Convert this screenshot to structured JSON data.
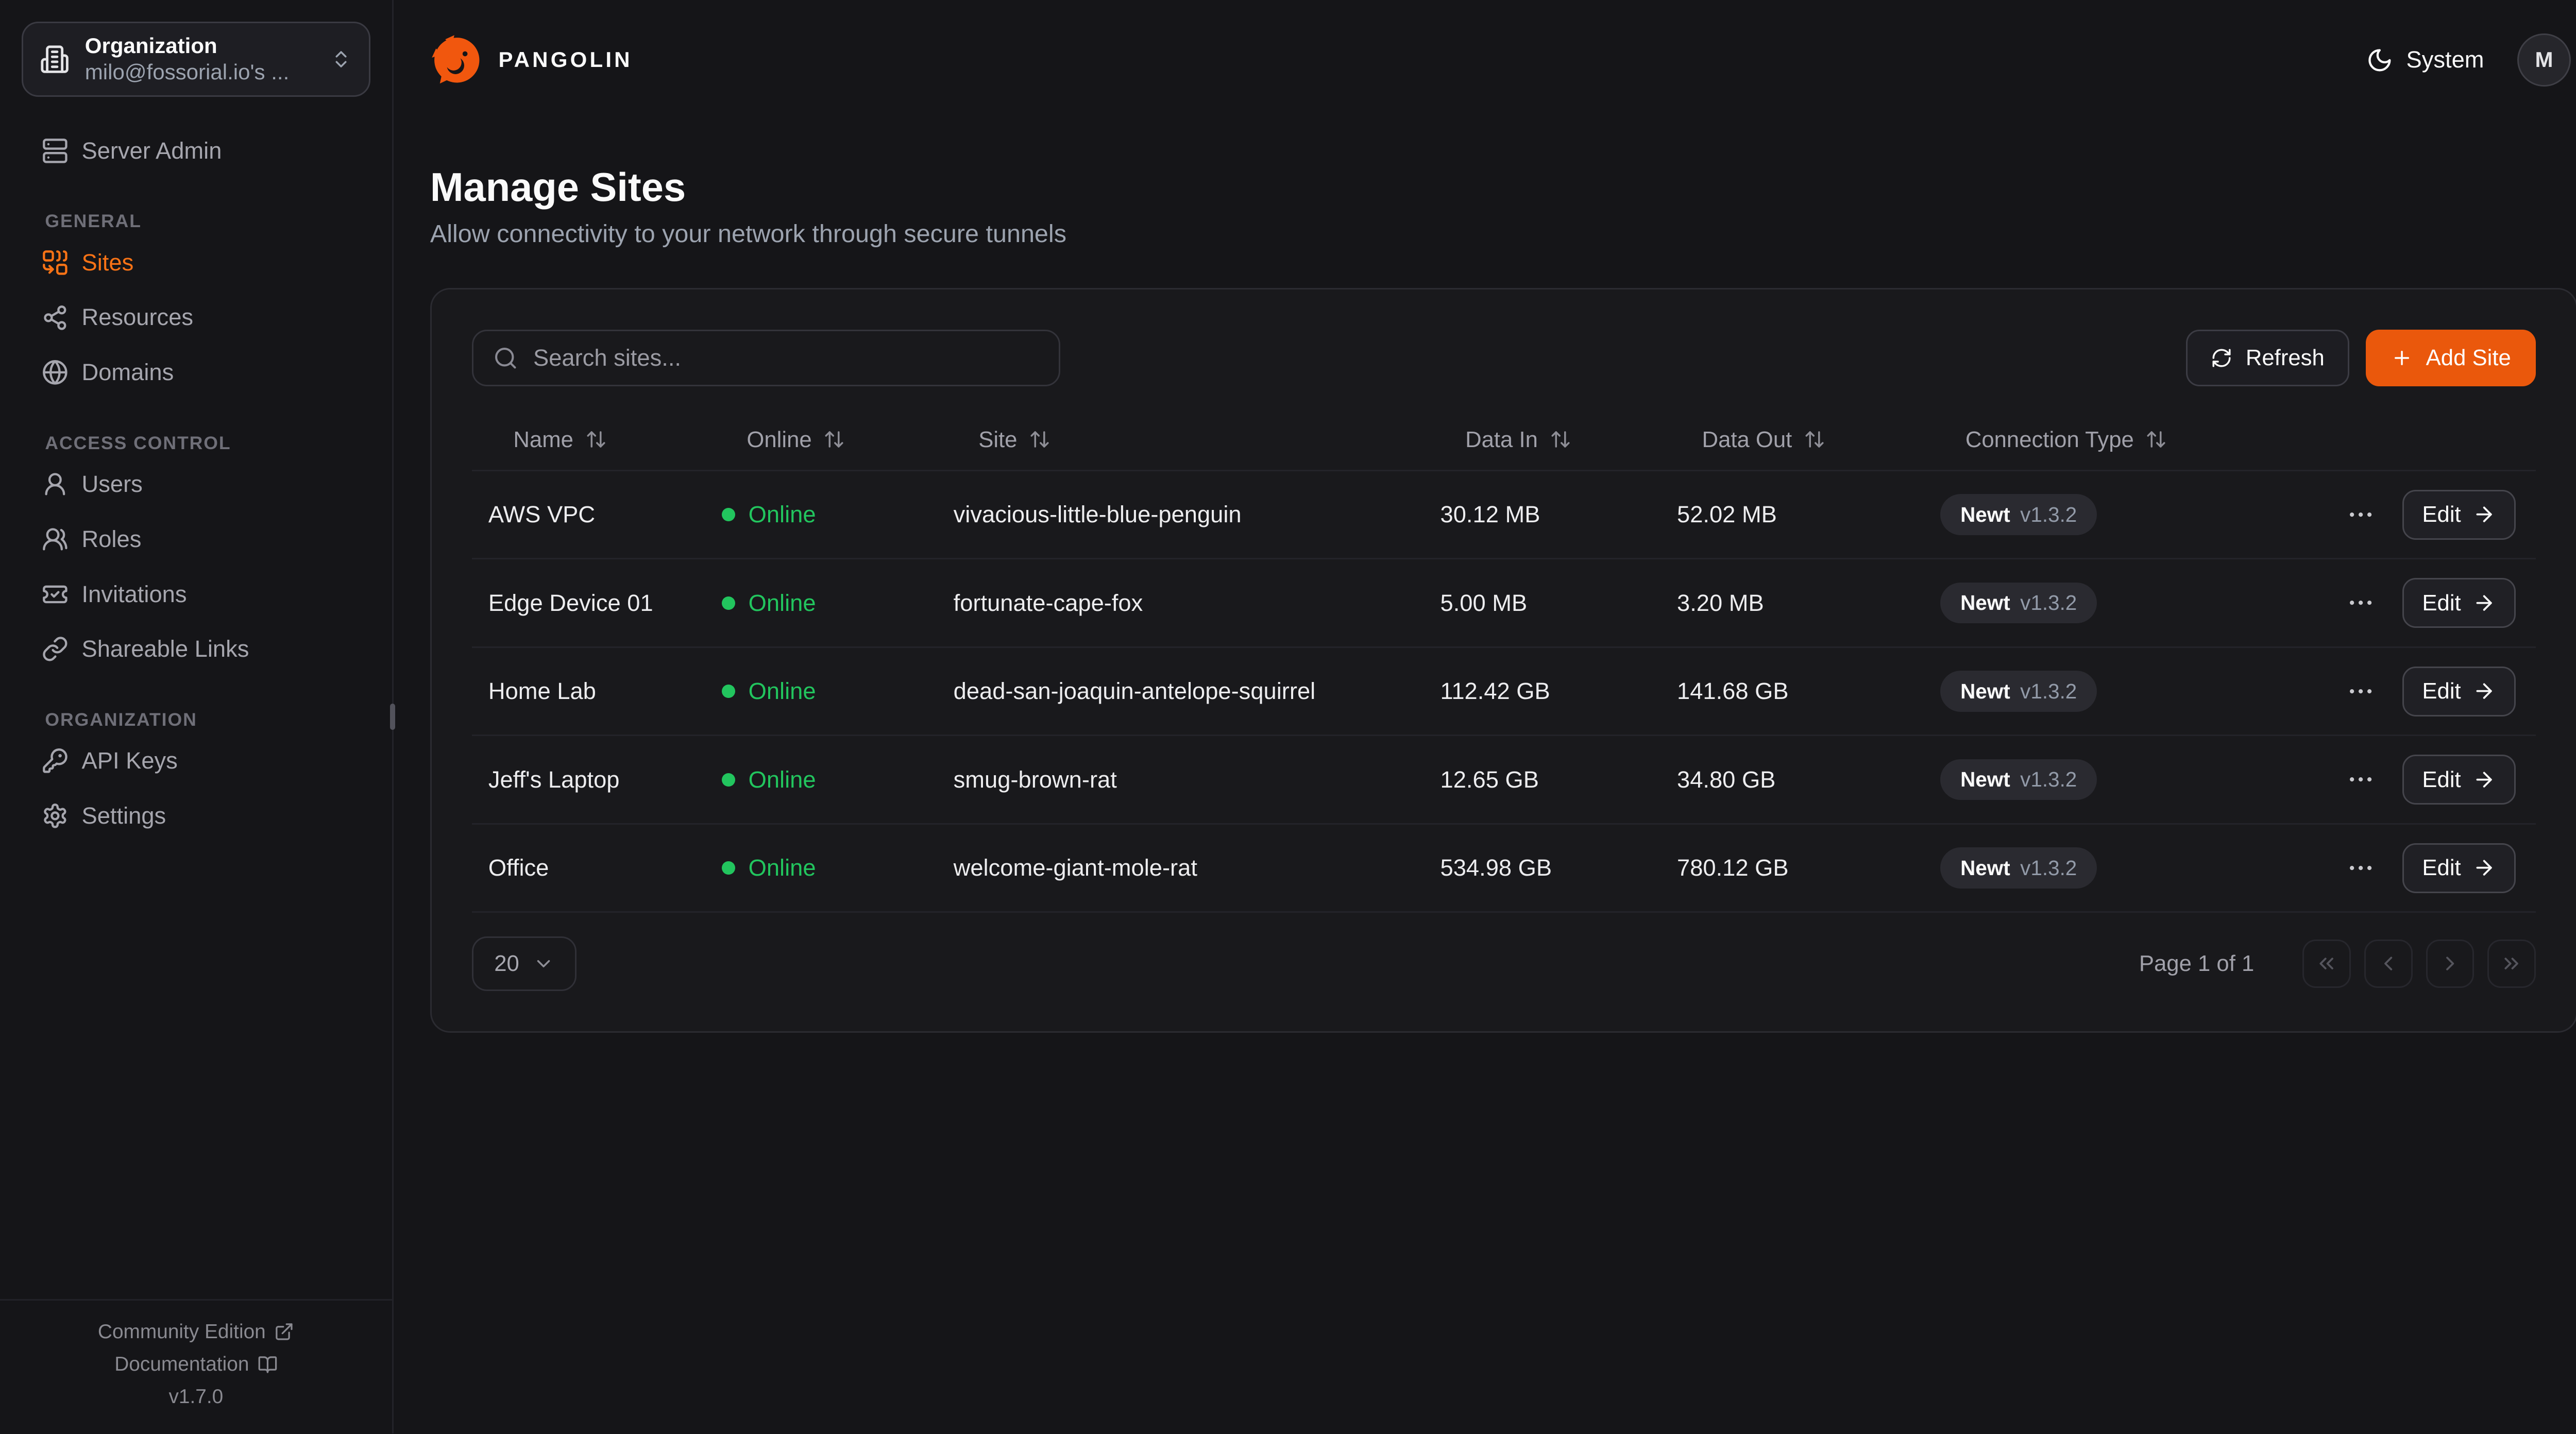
{
  "brand": {
    "name": "PANGOLIN",
    "logo_color": "#f1570e"
  },
  "org_switcher": {
    "label": "Organization",
    "value": "milo@fossorial.io's ...",
    "icon": "building"
  },
  "sidebar": {
    "items_top": [
      {
        "label": "Server Admin",
        "icon": "server",
        "active": false
      }
    ],
    "sections": [
      {
        "title": "GENERAL",
        "items": [
          {
            "label": "Sites",
            "icon": "combine",
            "active": true
          },
          {
            "label": "Resources",
            "icon": "share-2",
            "active": false
          },
          {
            "label": "Domains",
            "icon": "globe",
            "active": false
          }
        ]
      },
      {
        "title": "ACCESS CONTROL",
        "items": [
          {
            "label": "Users",
            "icon": "user-round",
            "active": false
          },
          {
            "label": "Roles",
            "icon": "users-round",
            "active": false
          },
          {
            "label": "Invitations",
            "icon": "ticket-check",
            "active": false
          },
          {
            "label": "Shareable Links",
            "icon": "link",
            "active": false
          }
        ]
      },
      {
        "title": "ORGANIZATION",
        "items": [
          {
            "label": "API Keys",
            "icon": "key-round",
            "active": false
          },
          {
            "label": "Settings",
            "icon": "settings",
            "active": false
          }
        ]
      }
    ],
    "footer": {
      "links": [
        {
          "label": "Community Edition",
          "icon": "external-link"
        },
        {
          "label": "Documentation",
          "icon": "book-open"
        }
      ],
      "version": "v1.7.0"
    }
  },
  "header": {
    "theme_label": "System",
    "theme_icon": "moon",
    "avatar_initial": "M"
  },
  "page": {
    "title": "Manage Sites",
    "subtitle": "Allow connectivity to your network through secure tunnels"
  },
  "toolbar": {
    "search_placeholder": "Search sites...",
    "refresh_label": "Refresh",
    "add_site_label": "Add Site"
  },
  "table": {
    "edit_label": "Edit",
    "columns": [
      {
        "label": "Name",
        "sortable": true
      },
      {
        "label": "Online",
        "sortable": true
      },
      {
        "label": "Site",
        "sortable": true
      },
      {
        "label": "Data In",
        "sortable": true
      },
      {
        "label": "Data Out",
        "sortable": true
      },
      {
        "label": "Connection Type",
        "sortable": true
      },
      {
        "label": "",
        "sortable": false
      }
    ],
    "rows": [
      {
        "name": "AWS VPC",
        "status": "Online",
        "site": "vivacious-little-blue-penguin",
        "data_in": "30.12 MB",
        "data_out": "52.02 MB",
        "connection": {
          "type": "Newt",
          "version": "v1.3.2"
        }
      },
      {
        "name": "Edge Device 01",
        "status": "Online",
        "site": "fortunate-cape-fox",
        "data_in": "5.00 MB",
        "data_out": "3.20 MB",
        "connection": {
          "type": "Newt",
          "version": "v1.3.2"
        }
      },
      {
        "name": "Home Lab",
        "status": "Online",
        "site": "dead-san-joaquin-antelope-squirrel",
        "data_in": "112.42 GB",
        "data_out": "141.68 GB",
        "connection": {
          "type": "Newt",
          "version": "v1.3.2"
        }
      },
      {
        "name": "Jeff's Laptop",
        "status": "Online",
        "site": "smug-brown-rat",
        "data_in": "12.65 GB",
        "data_out": "34.80 GB",
        "connection": {
          "type": "Newt",
          "version": "v1.3.2"
        }
      },
      {
        "name": "Office",
        "status": "Online",
        "site": "welcome-giant-mole-rat",
        "data_in": "534.98 GB",
        "data_out": "780.12 GB",
        "connection": {
          "type": "Newt",
          "version": "v1.3.2"
        }
      }
    ]
  },
  "pagination": {
    "page_size": "20",
    "page_info": "Page 1 of 1",
    "buttons": [
      "first",
      "previous",
      "next",
      "last"
    ]
  },
  "colors": {
    "accent": "#ea580c",
    "nav_active": "#f97316",
    "online": "#22c55e",
    "background": "#151518",
    "card": "#19191c"
  }
}
